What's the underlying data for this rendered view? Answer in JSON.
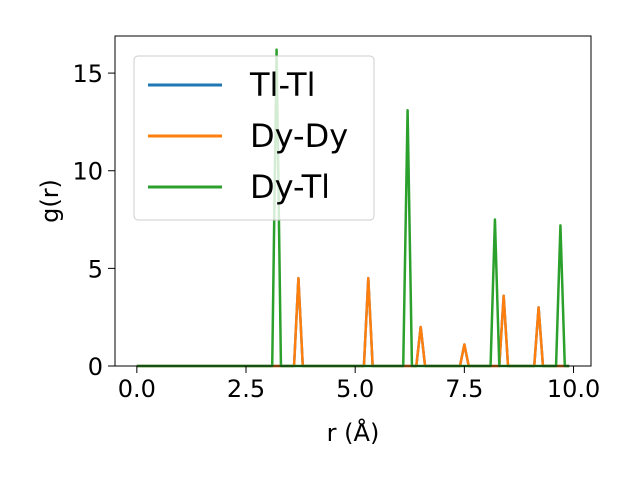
{
  "chart_data": {
    "type": "line",
    "xlabel": "r (Å)",
    "ylabel": "g(r)",
    "xlim": [
      -0.5,
      10.4
    ],
    "ylim": [
      0,
      16.9
    ],
    "xticks": [
      0.0,
      2.5,
      5.0,
      7.5,
      10.0
    ],
    "xtick_labels": [
      "0.0",
      "2.5",
      "5.0",
      "7.5",
      "10.0"
    ],
    "yticks": [
      0,
      5,
      10,
      15
    ],
    "ytick_labels": [
      "0",
      "5",
      "10",
      "15"
    ],
    "grid": false,
    "legend": "top-left",
    "colors": {
      "Tl-Tl": "#1f77b4",
      "Dy-Dy": "#ff7f0e",
      "Dy-Tl": "#2ca02c"
    },
    "series": [
      {
        "name": "Tl-Tl",
        "x": [
          0.0,
          3.6,
          3.7,
          3.8,
          5.2,
          5.3,
          5.4,
          6.4,
          6.5,
          6.6,
          7.4,
          7.5,
          7.6,
          8.3,
          8.4,
          8.5,
          9.1,
          9.2,
          9.3,
          9.9
        ],
        "y": [
          0,
          0,
          4.5,
          0,
          0,
          4.5,
          0,
          0,
          2.0,
          0,
          0,
          1.1,
          0,
          0,
          3.6,
          0,
          0,
          3.0,
          0,
          0
        ]
      },
      {
        "name": "Dy-Dy",
        "x": [
          0.0,
          3.6,
          3.7,
          3.8,
          5.2,
          5.3,
          5.4,
          6.4,
          6.5,
          6.6,
          7.4,
          7.5,
          7.6,
          8.3,
          8.4,
          8.5,
          9.1,
          9.2,
          9.3,
          9.9
        ],
        "y": [
          0,
          0,
          4.5,
          0,
          0,
          4.5,
          0,
          0,
          2.0,
          0,
          0,
          1.1,
          0,
          0,
          3.6,
          0,
          0,
          3.0,
          0,
          0
        ]
      },
      {
        "name": "Dy-Tl",
        "x": [
          0.0,
          3.1,
          3.2,
          3.3,
          6.1,
          6.2,
          6.3,
          8.1,
          8.2,
          8.3,
          9.6,
          9.7,
          9.8,
          9.9
        ],
        "y": [
          0,
          0,
          16.2,
          0,
          0,
          13.1,
          0,
          0,
          7.5,
          0,
          0,
          7.2,
          0,
          0
        ]
      }
    ]
  }
}
